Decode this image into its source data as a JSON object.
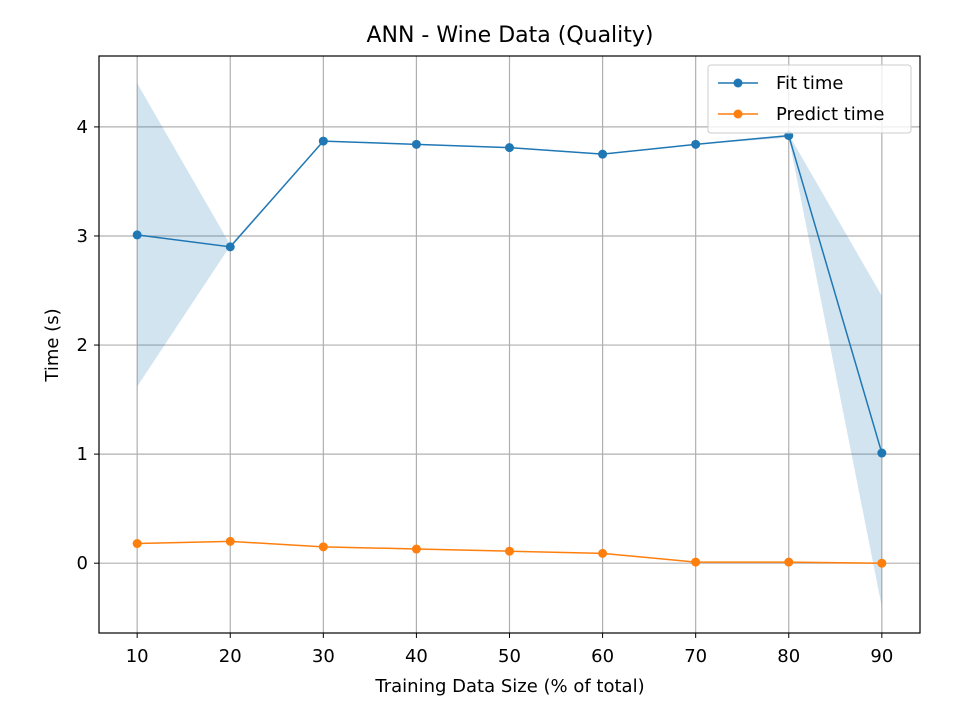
{
  "chart_data": {
    "type": "line",
    "title": "ANN - Wine Data (Quality)",
    "xlabel": "Training Data Size (% of total)",
    "ylabel": "Time (s)",
    "x": [
      10,
      20,
      30,
      40,
      50,
      60,
      70,
      80,
      90
    ],
    "xticks": [
      10,
      20,
      30,
      40,
      50,
      60,
      70,
      80,
      90
    ],
    "yticks": [
      0,
      1,
      2,
      3,
      4
    ],
    "xlim": [
      5.9,
      94.1
    ],
    "ylim": [
      -0.64,
      4.65
    ],
    "grid": true,
    "legend_position": "top-right",
    "series": [
      {
        "name": "Fit time",
        "color": "#1f77b4",
        "marker": "circle",
        "values": [
          3.01,
          2.9,
          3.87,
          3.84,
          3.81,
          3.75,
          3.84,
          3.92,
          1.01
        ],
        "band_lower": [
          1.62,
          2.91,
          3.87,
          3.84,
          3.81,
          3.75,
          3.84,
          3.9,
          -0.4
        ],
        "band_upper": [
          4.4,
          2.92,
          3.87,
          3.84,
          3.81,
          3.75,
          3.84,
          3.93,
          2.45
        ],
        "band_color": "#1f77b4"
      },
      {
        "name": "Predict time",
        "color": "#ff7f0e",
        "marker": "circle",
        "values": [
          0.18,
          0.2,
          0.15,
          0.13,
          0.11,
          0.09,
          0.01,
          0.01,
          0.0
        ]
      }
    ]
  }
}
